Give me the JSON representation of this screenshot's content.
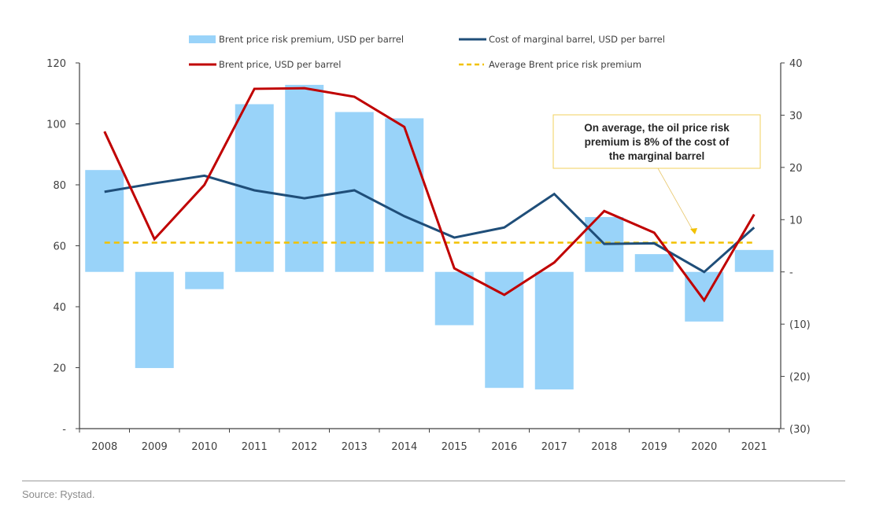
{
  "chart_data": {
    "type": "bar",
    "title": "",
    "categories": [
      "2008",
      "2009",
      "2010",
      "2011",
      "2012",
      "2013",
      "2014",
      "2015",
      "2016",
      "2017",
      "2018",
      "2019",
      "2020",
      "2021"
    ],
    "series": [
      {
        "name": "Brent price risk premium, USD per barrel",
        "type": "bar",
        "axis": "right",
        "color": "#99d3f9",
        "values": [
          19.5,
          -18.4,
          -3.3,
          32.1,
          35.8,
          30.6,
          29.4,
          -10.2,
          -22.2,
          -22.5,
          10.5,
          3.4,
          -9.5,
          4.2
        ]
      },
      {
        "name": "Cost of marginal barrel, USD per barrel",
        "type": "line",
        "axis": "left",
        "color": "#1f4e79",
        "values": [
          77.7,
          80.5,
          83.0,
          78.2,
          75.6,
          78.2,
          69.7,
          62.7,
          66.0,
          77.0,
          60.6,
          60.8,
          51.4,
          66.0
        ]
      },
      {
        "name": "Brent price, USD per barrel",
        "type": "line",
        "axis": "left",
        "color": "#c00000",
        "values": [
          97.5,
          62.2,
          80.0,
          111.5,
          111.7,
          108.9,
          99.0,
          52.6,
          43.9,
          54.5,
          71.4,
          64.3,
          42.1,
          70.3
        ]
      },
      {
        "name": "Average Brent price risk premium",
        "type": "line",
        "style": "dashed",
        "axis": "right",
        "color": "#f2c100",
        "values": [
          5.6,
          5.6,
          5.6,
          5.6,
          5.6,
          5.6,
          5.6,
          5.6,
          5.6,
          5.6,
          5.6,
          5.6,
          5.6,
          5.6
        ]
      }
    ],
    "left_axis": {
      "ylim": [
        0,
        120
      ],
      "ticks": [
        0,
        20,
        40,
        60,
        80,
        100,
        120
      ],
      "tick_labels": [
        "-",
        "20",
        "40",
        "60",
        "80",
        "100",
        "120"
      ]
    },
    "right_axis": {
      "ylim": [
        -30,
        40
      ],
      "ticks": [
        -30,
        -20,
        -10,
        0,
        10,
        20,
        30,
        40
      ],
      "tick_labels": [
        "(30)",
        "(20)",
        "(10)",
        "-",
        "10",
        "20",
        "30",
        "40"
      ]
    },
    "xlabel": "",
    "ylabel": "",
    "grid": false,
    "legend": {
      "placement": "top",
      "columns": 2,
      "order": [
        0,
        1,
        2,
        3
      ]
    },
    "annotation": {
      "lines": [
        "On average, the oil price risk",
        "premium is 8% of the cost of",
        "the marginal barrel"
      ],
      "border_color": "#f2d25c",
      "points_to_series": "Average Brent price risk premium",
      "points_to_category": "2020"
    }
  },
  "footer": {
    "source": "Source: Rystad."
  }
}
